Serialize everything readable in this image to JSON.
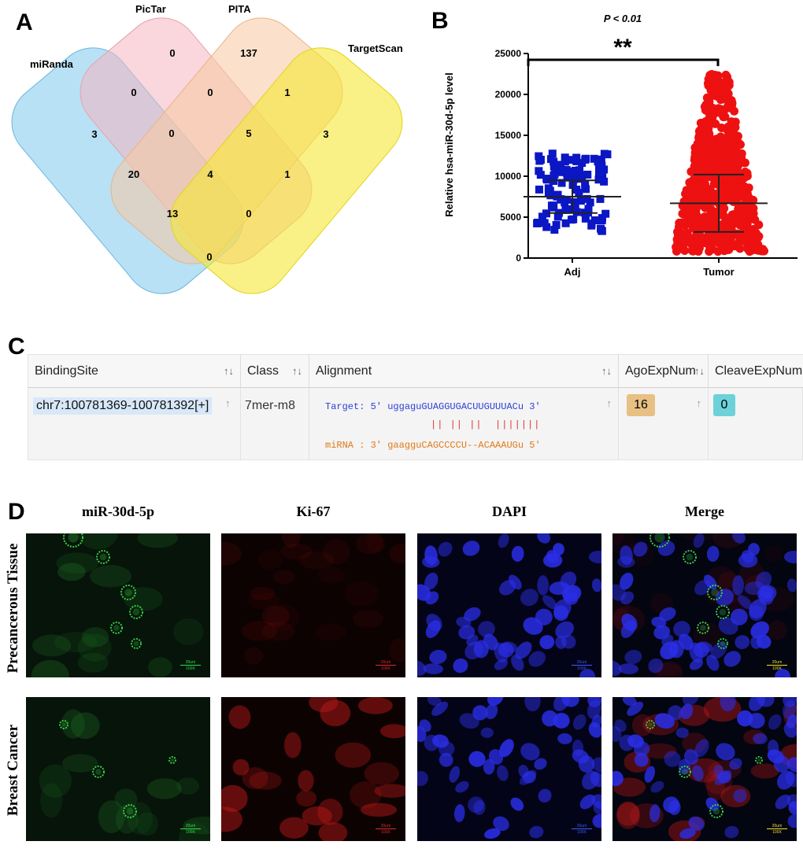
{
  "panels": {
    "a": "A",
    "b": "B",
    "c": "C",
    "d": "D"
  },
  "venn": {
    "set_labels": [
      "miRanda",
      "PicTar",
      "PITA",
      "TargetScan"
    ],
    "set_colors": [
      "#7ec8ec",
      "#f4b6c0",
      "#f8c9a0",
      "#f5e733"
    ],
    "counts": {
      "miRanda_only": "3",
      "PicTar_only": "0",
      "PITA_only": "137",
      "TargetScan_only": "3",
      "miRanda_PicTar": "0",
      "PicTar_PITA": "0",
      "PITA_TargetScan": "1",
      "miRanda_PITA": "20",
      "miRanda_TargetScan": "0",
      "PicTar_TargetScan": "1",
      "miRanda_PicTar_PITA": "0",
      "PicTar_PITA_TargetScan": "5",
      "miRanda_PITA_TargetScan": "13",
      "miRanda_PicTar_TargetScan": "0",
      "all_four": "4"
    }
  },
  "chart_data": {
    "type": "scatter",
    "title": "P < 0.01",
    "significance": "**",
    "ylabel": "Relative hsa-miR-30d-5p level",
    "xlabel": "",
    "ylim": [
      0,
      25000
    ],
    "yticks": [
      "0",
      "5000",
      "10000",
      "15000",
      "20000",
      "25000"
    ],
    "categories": [
      "Adj",
      "Tumor"
    ],
    "grid": false,
    "series": [
      {
        "name": "Adj",
        "color": "#0b16c4",
        "marker": "square",
        "mean": 7500,
        "sd_low": 5500,
        "sd_high": 9500,
        "min": 3300,
        "max": 12800,
        "n": 112
      },
      {
        "name": "Tumor",
        "color": "#ee1111",
        "marker": "circle",
        "mean": 6700,
        "sd_low": 3200,
        "sd_high": 10200,
        "min": 800,
        "max": 22500,
        "n": 700
      }
    ]
  },
  "table": {
    "headers": [
      "BindingSite",
      "Class",
      "Alignment",
      "AgoExpNum",
      "CleaveExpNum"
    ],
    "binding_site": "chr7:100781369-100781392[+]",
    "class": "7mer-m8",
    "target_line": "Target: 5' uggaguGUAGGUGACUUGUUUACu 3'",
    "match_line": "|| || ||  |||||||",
    "mirna_line": "miRNA : 3' gaagguCAGCCCCU--ACAAAUGu 5'",
    "target_color": "#2b3fd6",
    "mirna_color": "#e07a1a",
    "match_color": "#d33",
    "ago_exp_num": "16",
    "cleave_exp_num": "0",
    "ago_color": "#e8c083",
    "cleave_color": "#6dd1d9"
  },
  "imaging": {
    "columns": [
      "miR-30d-5p",
      "Ki-67",
      "DAPI",
      "Merge"
    ],
    "rows": [
      "Precancerous Tissue",
      "Breast Cancer"
    ],
    "scale_text": "20um",
    "magnification": "100X"
  }
}
